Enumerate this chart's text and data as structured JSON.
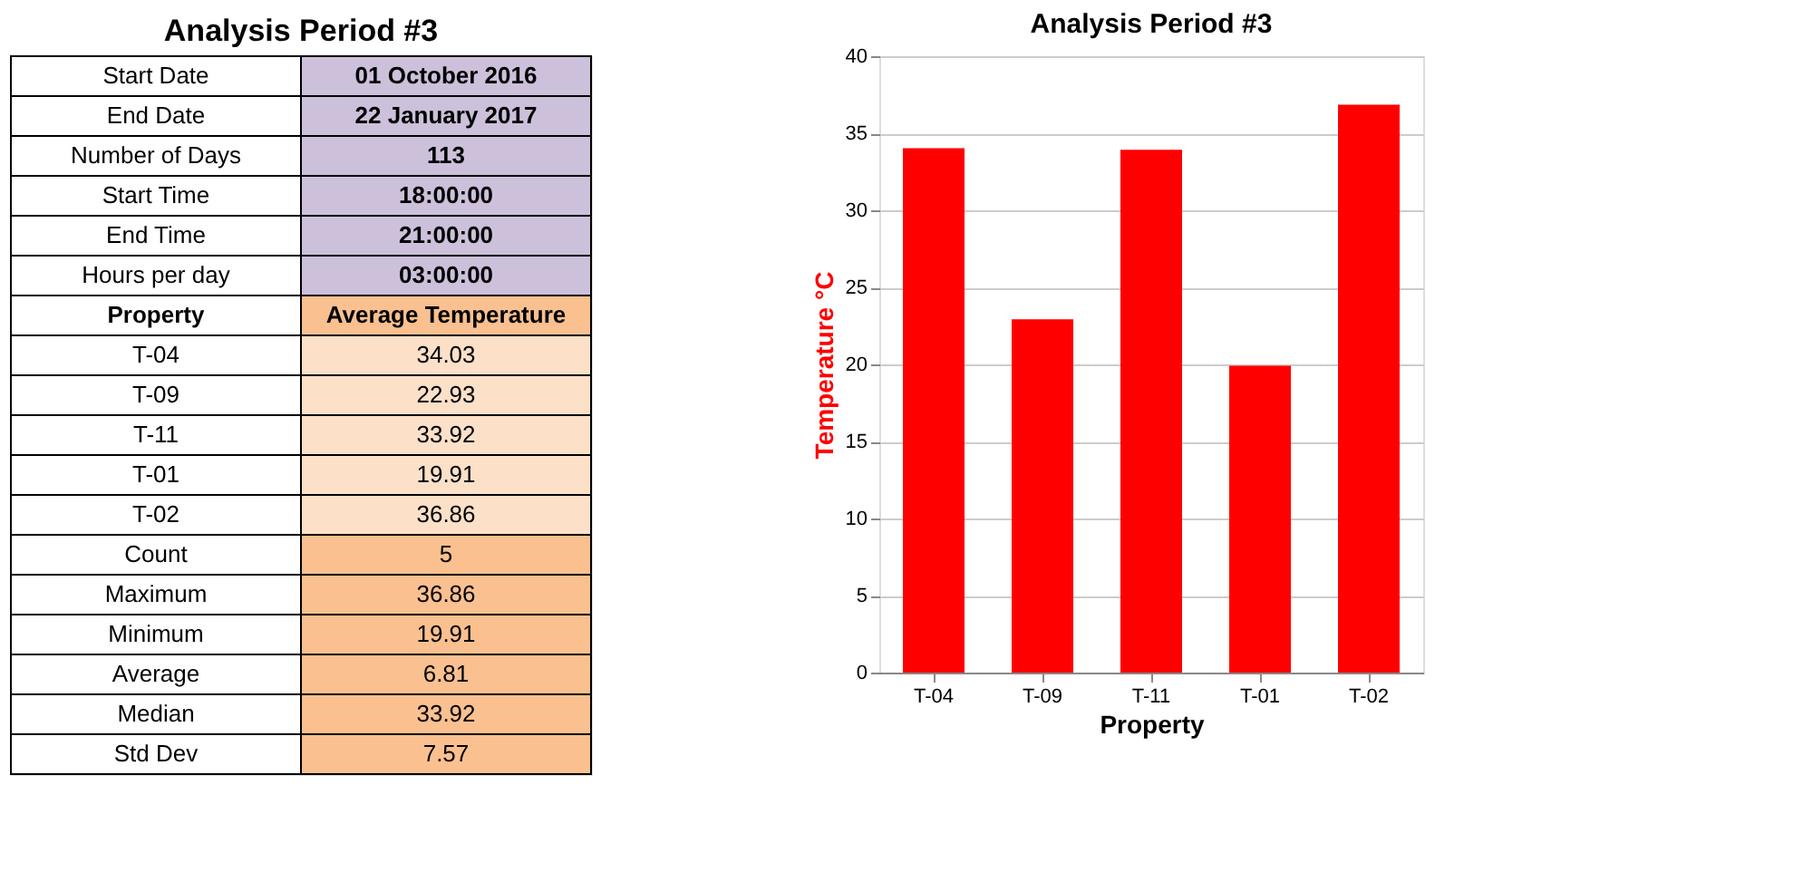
{
  "chart_data": [
    {
      "type": "other",
      "title": "Analysis Period #3",
      "annotations": [
        "Start Date",
        "01 October 2016",
        "End Date",
        "22 January 2017",
        "Number of Days",
        "113",
        "Start Time",
        "18:00:00",
        "End Time",
        "21:00:00",
        "Hours per day",
        "03:00:00",
        "Property",
        "Average Temperature",
        "T-04",
        "34.03",
        "T-09",
        "22.93",
        "T-11",
        "33.92",
        "T-01",
        "19.91",
        "T-02",
        "36.86",
        "Count",
        "5",
        "Maximum",
        "36.86",
        "Minimum",
        "19.91",
        "Average",
        "6.81",
        "Median",
        "33.92",
        "Std Dev",
        "7.57"
      ]
    },
    {
      "type": "bar",
      "title": "Analysis Period #3",
      "xlabel": "Property",
      "ylabel": "Temperature °C",
      "categories": [
        "T-04",
        "T-09",
        "T-11",
        "T-01",
        "T-02"
      ],
      "values": [
        34.03,
        22.93,
        33.92,
        19.91,
        36.86
      ],
      "color": "#ff0000",
      "ylim": [
        0,
        40
      ],
      "yticks": [
        0,
        5,
        10,
        15,
        20,
        25,
        30,
        35,
        40
      ],
      "grid": "y"
    }
  ]
}
